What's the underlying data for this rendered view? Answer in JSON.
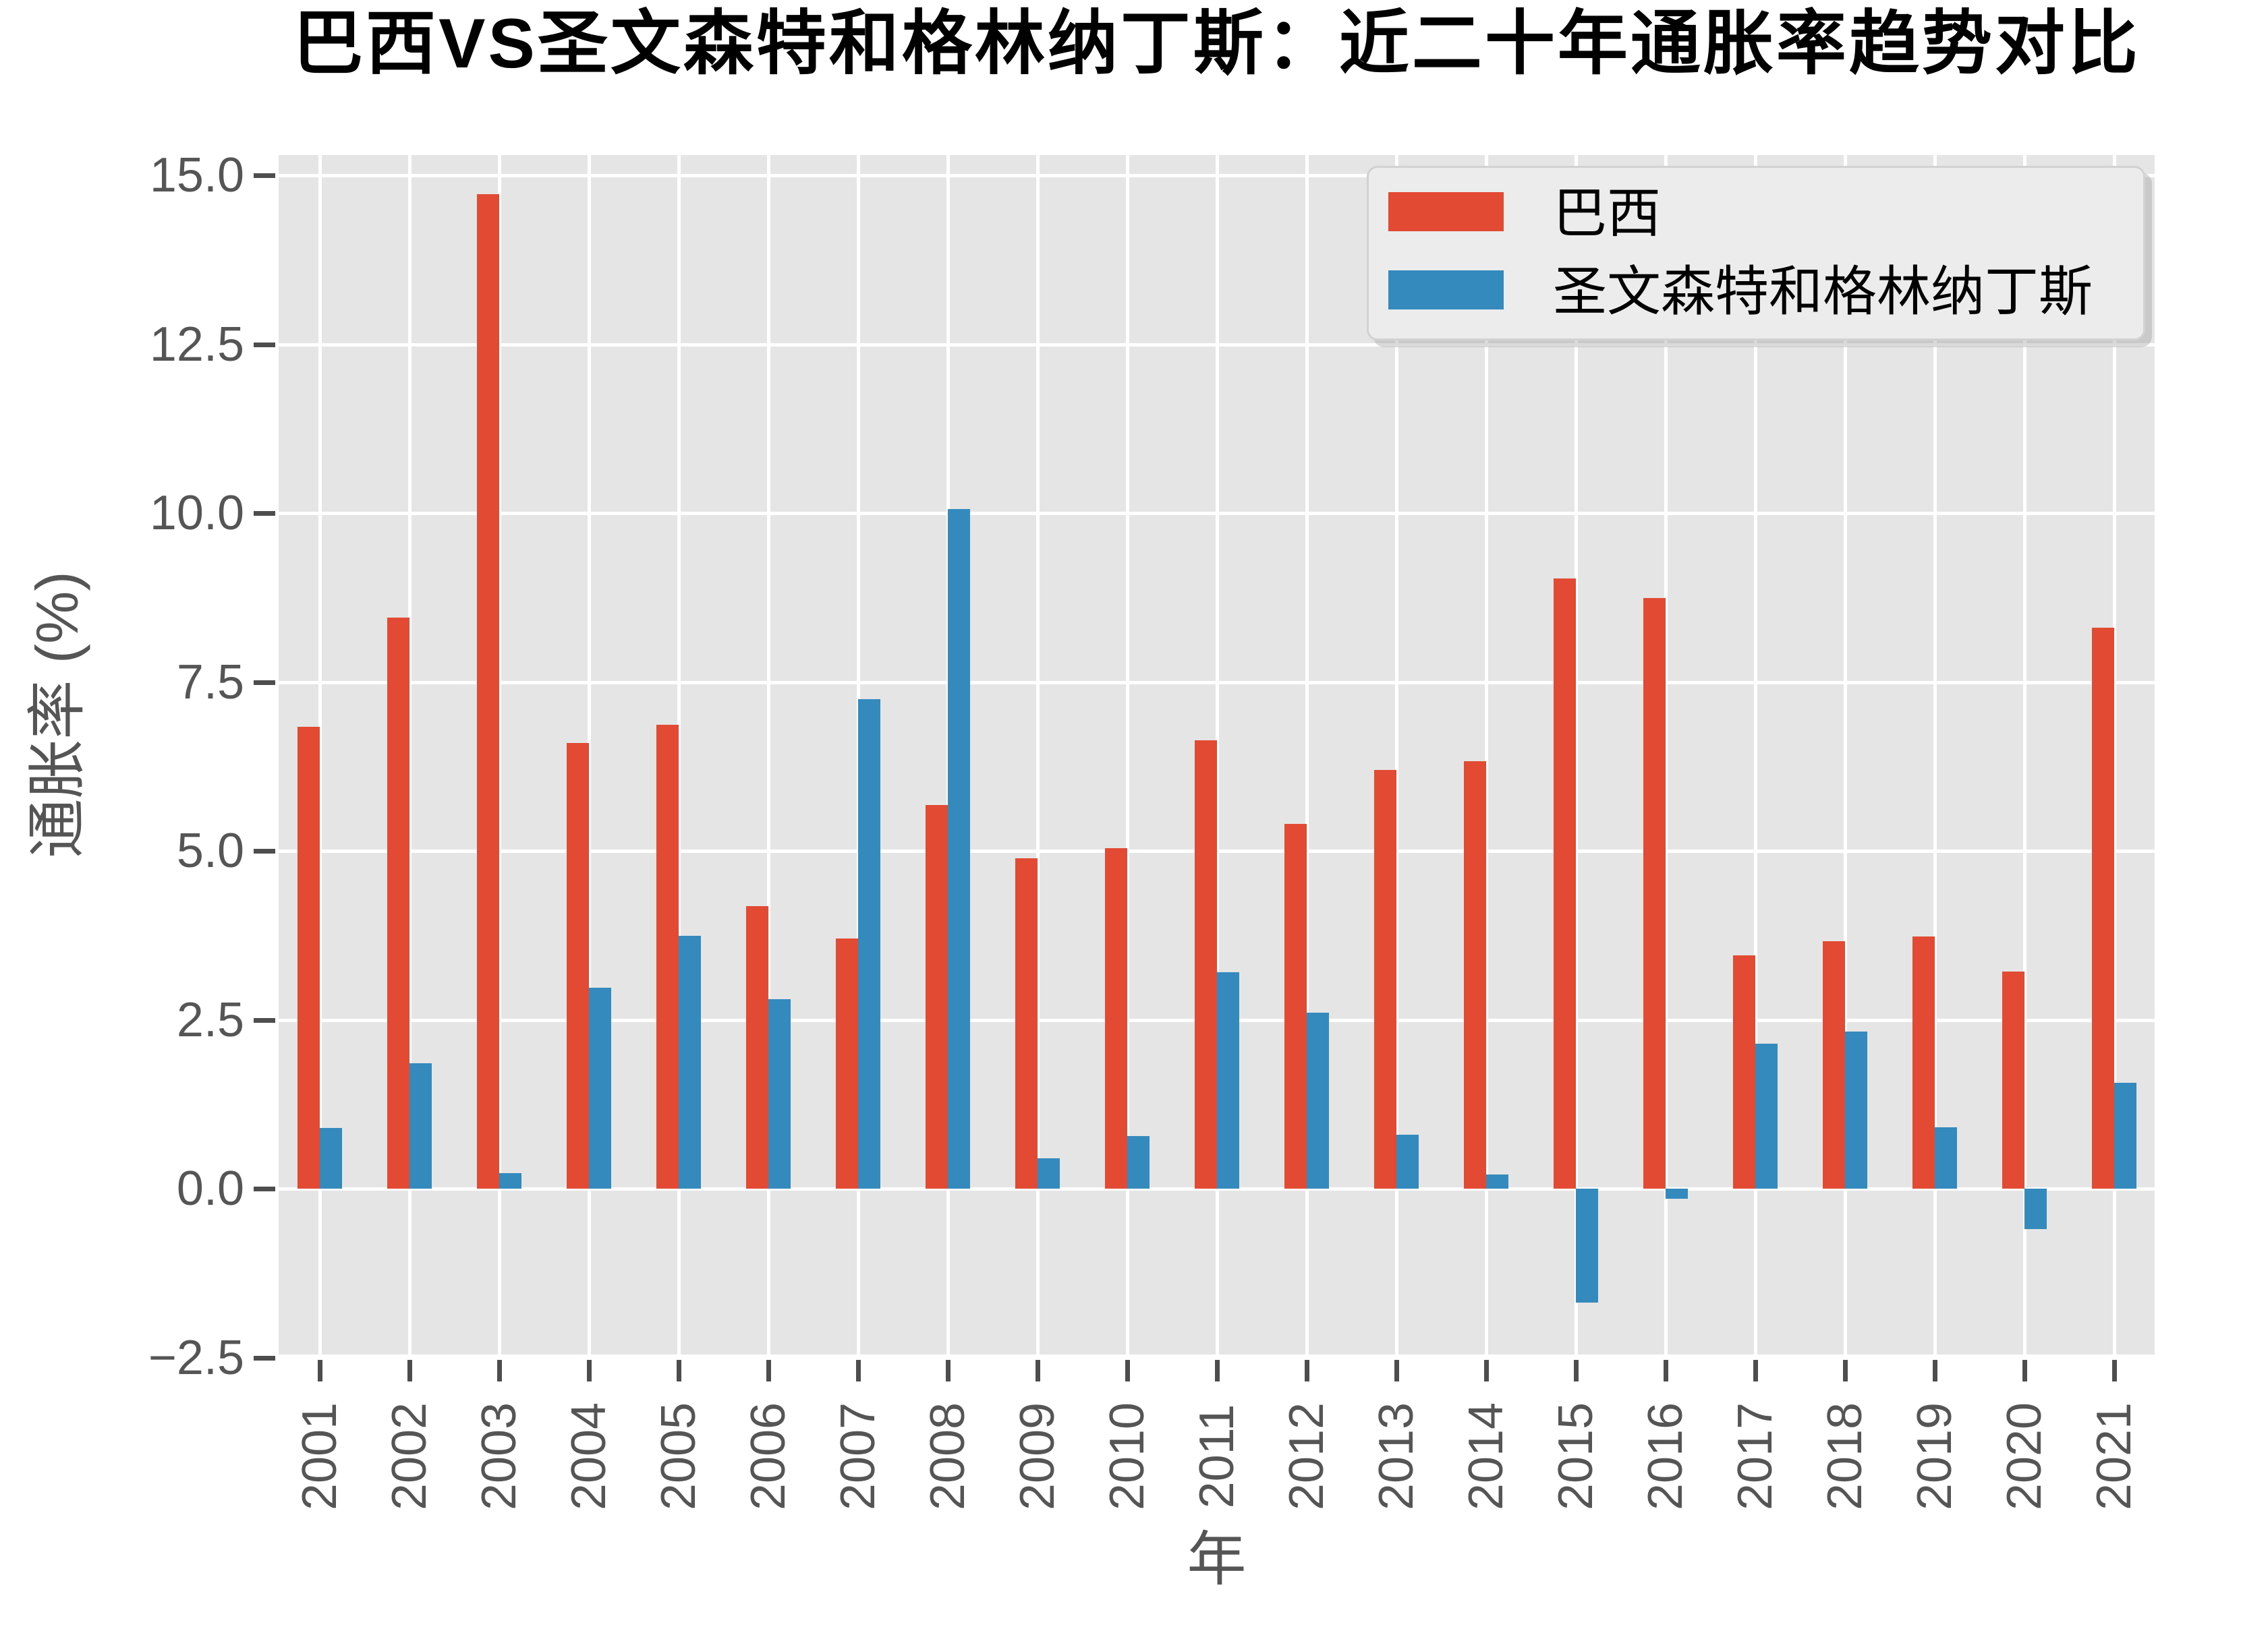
{
  "title": "巴西VS圣文森特和格林纳丁斯：近二十年通胀率趋势对比",
  "axis_labels": {
    "x": "年",
    "y": "通胀率 (%)"
  },
  "legend": {
    "position": "upper right",
    "items": [
      {
        "label": "巴西",
        "color": "#E24A33"
      },
      {
        "label": "圣文森特和格林纳丁斯",
        "color": "#348ABD"
      }
    ]
  },
  "chart_data": {
    "type": "bar",
    "title": "巴西VS圣文森特和格林纳丁斯：近二十年通胀率趋势对比",
    "xlabel": "年",
    "ylabel": "通胀率 (%)",
    "categories": [
      "2001",
      "2002",
      "2003",
      "2004",
      "2005",
      "2006",
      "2007",
      "2008",
      "2009",
      "2010",
      "2011",
      "2012",
      "2013",
      "2014",
      "2015",
      "2016",
      "2017",
      "2018",
      "2019",
      "2020",
      "2021"
    ],
    "series": [
      {
        "name": "巴西",
        "key": "brazil",
        "color": "#E24A33",
        "values": [
          6.84,
          8.45,
          14.72,
          6.6,
          6.87,
          4.18,
          3.7,
          5.68,
          4.89,
          5.04,
          6.64,
          5.4,
          6.2,
          6.33,
          9.03,
          8.74,
          3.45,
          3.66,
          3.73,
          3.21,
          8.3
        ]
      },
      {
        "name": "圣文森特和格林纳丁斯",
        "key": "saint-vincent",
        "color": "#348ABD",
        "values": [
          0.9,
          1.86,
          0.23,
          2.97,
          3.74,
          2.8,
          7.25,
          10.06,
          0.45,
          0.78,
          3.2,
          2.6,
          0.8,
          0.21,
          -1.69,
          -0.15,
          2.15,
          2.33,
          0.91,
          -0.6,
          1.57
        ]
      }
    ],
    "ylim": [
      -2.54,
      15.53
    ],
    "yticks": [
      -2.5,
      0.0,
      2.5,
      5.0,
      7.5,
      10.0,
      12.5,
      15.0
    ],
    "ytick_labels": [
      "−2.5",
      "0.0",
      "2.5",
      "5.0",
      "7.5",
      "10.0",
      "12.5",
      "15.0"
    ],
    "grid": true,
    "colors": {
      "plot_background": "#E5E5E5",
      "grid": "#FFFFFF",
      "tick": "#555555",
      "title": "#000000",
      "figure_background": "#FFFFFF"
    }
  }
}
